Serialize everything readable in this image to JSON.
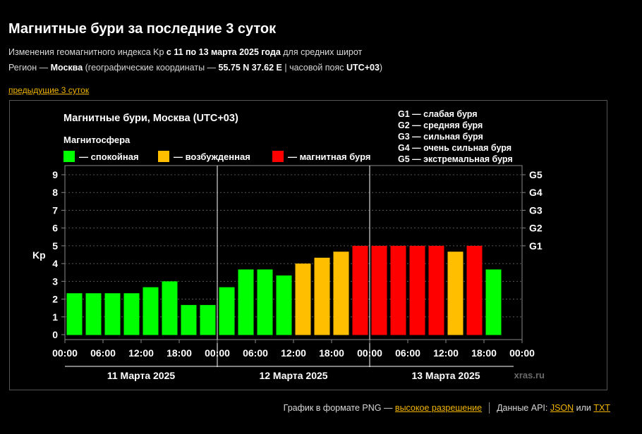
{
  "page": {
    "title": "Магнитные бури за последние 3 суток",
    "sub1_pre": "Изменения геомагнитного индекса Kp ",
    "sub1_bold": "с 11 по 13 марта 2025 года",
    "sub1_post": " для средних широт",
    "sub2_pre": "Регион — ",
    "sub2_region": "Москва",
    "sub2_mid": " (географические координаты — ",
    "sub2_coords": "55.75 N 37.62 E",
    "sub2_sep": " | часовой пояс ",
    "sub2_tz": "UTC+03",
    "sub2_post": ")",
    "prev_link": "предыдущие 3 суток"
  },
  "footer": {
    "png_text": "График в формате PNG — ",
    "png_link": "высокое разрешение",
    "api_text": "Данные API: ",
    "json_link": "JSON",
    "or_text": " или ",
    "txt_link": "TXT"
  },
  "chart_data": {
    "type": "bar",
    "title": "Магнитные бури, Москва (UTC+03)",
    "ylabel": "Kp",
    "ylim": [
      0,
      9
    ],
    "yticks": [
      "0",
      "1",
      "2",
      "3",
      "4",
      "5",
      "6",
      "7",
      "8",
      "9"
    ],
    "storm_levels": [
      {
        "label": "G1",
        "kp": 5
      },
      {
        "label": "G2",
        "kp": 6
      },
      {
        "label": "G3",
        "kp": 7
      },
      {
        "label": "G4",
        "kp": 8
      },
      {
        "label": "G5",
        "kp": 9
      }
    ],
    "legend_title": "Магнитосфера",
    "legend": [
      {
        "label": "— спокойная",
        "color": "#00ff00"
      },
      {
        "label": "— возбужденная",
        "color": "#ffbf00"
      },
      {
        "label": "— магнитная буря",
        "color": "#ff0000"
      }
    ],
    "scale_legend": [
      "G1 — слабая буря",
      "G2 — средняя буря",
      "G3 — сильная буря",
      "G4 — очень сильная буря",
      "G5 — экстремальная буря"
    ],
    "x_tick_labels": [
      "00:00",
      "06:00",
      "12:00",
      "18:00",
      "00:00",
      "06:00",
      "12:00",
      "18:00",
      "00:00",
      "06:00",
      "12:00",
      "18:00",
      "00:00"
    ],
    "days": [
      "11 Марта 2025",
      "12 Марта 2025",
      "13 Марта 2025"
    ],
    "intervals_per_day": 8,
    "values": [
      2.33,
      2.33,
      2.33,
      2.33,
      2.67,
      3.0,
      1.67,
      1.67,
      2.67,
      3.67,
      3.67,
      3.33,
      4.0,
      4.33,
      4.67,
      5.0,
      5.0,
      5.0,
      5.0,
      5.0,
      4.67,
      5.0,
      3.67
    ],
    "colors": {
      "quiet": "#00ff00",
      "active": "#ffbf00",
      "storm": "#ff0000"
    },
    "watermark": "xras.ru"
  }
}
